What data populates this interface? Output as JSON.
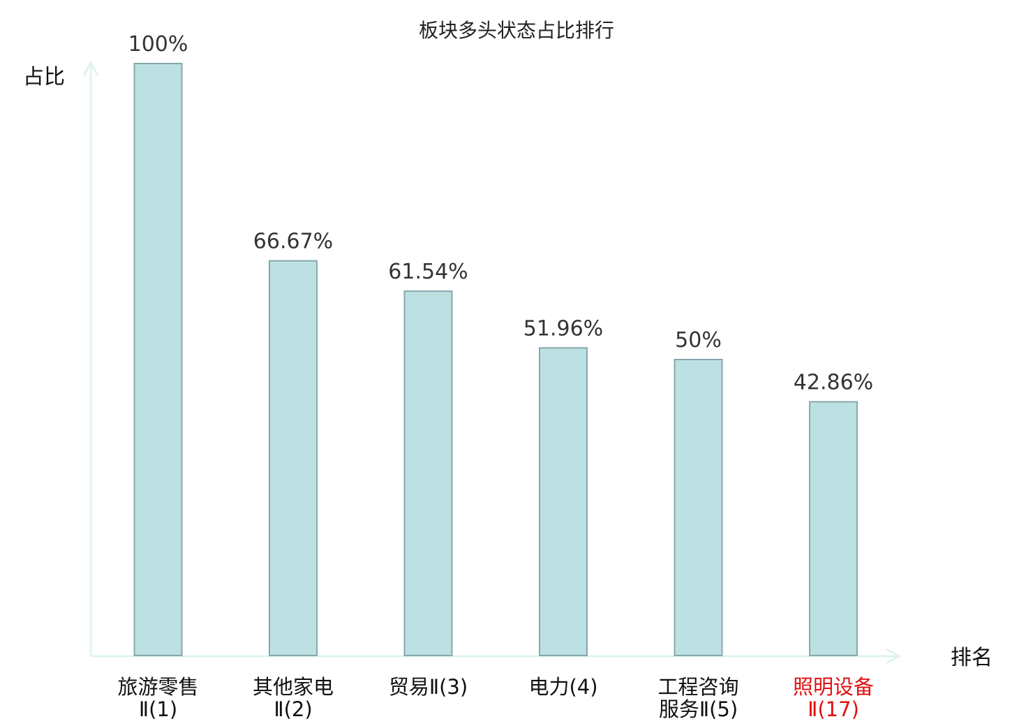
{
  "chart_data": {
    "type": "bar",
    "title": "板块多头状态占比排行",
    "ylabel": "占比",
    "xlabel": "排名",
    "ylim": [
      0,
      100
    ],
    "grid": false,
    "categories": [
      {
        "lines": [
          "旅游零售",
          "Ⅱ(1)"
        ],
        "highlight": false
      },
      {
        "lines": [
          "其他家电",
          "Ⅱ(2)"
        ],
        "highlight": false
      },
      {
        "lines": [
          "贸易Ⅱ(3)"
        ],
        "highlight": false
      },
      {
        "lines": [
          "电力(4)"
        ],
        "highlight": false
      },
      {
        "lines": [
          "工程咨询",
          "服务Ⅱ(5)"
        ],
        "highlight": false
      },
      {
        "lines": [
          "照明设备",
          "Ⅱ(17)"
        ],
        "highlight": true
      }
    ],
    "values": [
      100,
      66.67,
      61.54,
      51.96,
      50,
      42.86
    ],
    "value_labels": [
      "100%",
      "66.67%",
      "61.54%",
      "51.96%",
      "50%",
      "42.86%"
    ],
    "colors": {
      "bar_fill": "#bde0e3",
      "bar_stroke": "#86a8ab",
      "axis": "#dff3f0",
      "highlight_text": "#e01010",
      "normal_text": "#111111"
    }
  }
}
